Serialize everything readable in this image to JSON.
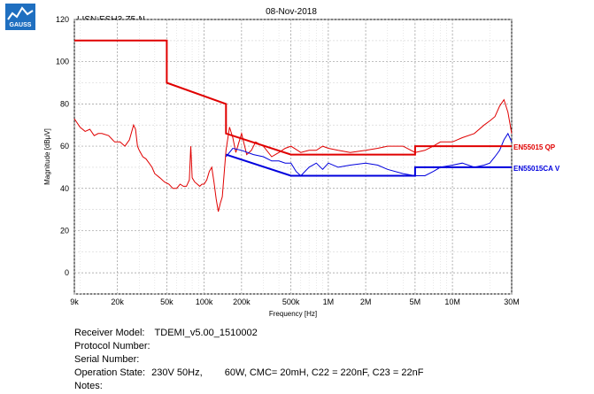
{
  "header": {
    "date": "08-Nov-2018",
    "logo_text": "GAUSS"
  },
  "chart_data": {
    "type": "line",
    "title": "LISN:ESH3-Z5-N",
    "xlabel": "Frequency [Hz]",
    "ylabel": "Magnitude [dBµV]",
    "xscale": "log",
    "xlim": [
      9000,
      30000000
    ],
    "ylim": [
      -10,
      120
    ],
    "grid": true,
    "x_ticks": [
      {
        "value": 9000,
        "label": "9k"
      },
      {
        "value": 20000,
        "label": "20k"
      },
      {
        "value": 50000,
        "label": "50k"
      },
      {
        "value": 100000,
        "label": "100k"
      },
      {
        "value": 200000,
        "label": "200k"
      },
      {
        "value": 500000,
        "label": "500k"
      },
      {
        "value": 1000000,
        "label": "1M"
      },
      {
        "value": 2000000,
        "label": "2M"
      },
      {
        "value": 5000000,
        "label": "5M"
      },
      {
        "value": 10000000,
        "label": "10M"
      },
      {
        "value": 30000000,
        "label": "30M"
      }
    ],
    "y_ticks": [
      {
        "value": 0,
        "label": "0"
      },
      {
        "value": 20,
        "label": "20"
      },
      {
        "value": 40,
        "label": "40"
      },
      {
        "value": 60,
        "label": "60"
      },
      {
        "value": 80,
        "label": "80"
      },
      {
        "value": 100,
        "label": "100"
      },
      {
        "value": 120,
        "label": "120"
      }
    ],
    "limit_lines": [
      {
        "name": "EN55015 QP",
        "color": "#e00000",
        "points": [
          [
            9000,
            110
          ],
          [
            50000,
            110
          ],
          [
            50000,
            90
          ],
          [
            150000,
            80
          ],
          [
            150000,
            66
          ],
          [
            500000,
            56
          ],
          [
            5000000,
            56
          ],
          [
            5000000,
            60
          ],
          [
            30000000,
            60
          ]
        ]
      },
      {
        "name": "EN55015CA V",
        "color": "#0000dd",
        "points": [
          [
            150000,
            56
          ],
          [
            500000,
            46
          ],
          [
            5000000,
            46
          ],
          [
            5000000,
            50
          ],
          [
            30000000,
            50
          ]
        ]
      }
    ],
    "series": [
      {
        "color": "#e00000",
        "x": [
          9000,
          10000,
          11000,
          12000,
          13000,
          14000,
          15000,
          17000,
          19000,
          21000,
          23000,
          25000,
          27000,
          28000,
          29000,
          30000,
          32000,
          34000,
          36000,
          38000,
          40000,
          44000,
          48000,
          52000,
          56000,
          60000,
          64000,
          68000,
          72000,
          76000,
          78000,
          80000,
          84000,
          88000,
          92000,
          96000,
          100000,
          105000,
          110000,
          115000,
          120000,
          125000,
          130000,
          135000,
          140000,
          150000,
          160000,
          170000,
          180000,
          200000,
          220000,
          240000,
          260000,
          300000,
          350000,
          400000,
          450000,
          500000,
          600000,
          700000,
          800000,
          900000,
          1000000,
          1200000,
          1500000,
          2000000,
          2500000,
          3000000,
          4000000,
          5000000,
          6000000,
          7000000,
          8000000,
          10000000,
          12000000,
          15000000,
          18000000,
          20000000,
          22000000,
          24000000,
          26000000,
          28000000,
          30000000
        ],
        "y": [
          73,
          69,
          67,
          68,
          65,
          66,
          66,
          65,
          62,
          62,
          60,
          63,
          70,
          68,
          60,
          58,
          55,
          54,
          52,
          50,
          47,
          45,
          43,
          42,
          40,
          40,
          42,
          41,
          41,
          44,
          60,
          45,
          43,
          42,
          41,
          42,
          42,
          44,
          48,
          50,
          43,
          35,
          29,
          33,
          36,
          58,
          69,
          64,
          57,
          66,
          56,
          58,
          62,
          60,
          55,
          57,
          59,
          60,
          57,
          58,
          58,
          60,
          59,
          58,
          57,
          58,
          59,
          60,
          60,
          57,
          58,
          60,
          62,
          62,
          64,
          66,
          70,
          72,
          74,
          79,
          82,
          76,
          66
        ]
      },
      {
        "color": "#0000dd",
        "x": [
          150000,
          170000,
          200000,
          250000,
          300000,
          350000,
          400000,
          450000,
          500000,
          550000,
          600000,
          700000,
          800000,
          900000,
          1000000,
          1200000,
          1500000,
          2000000,
          2500000,
          3000000,
          4000000,
          5000000,
          6000000,
          7000000,
          8000000,
          10000000,
          12000000,
          15000000,
          18000000,
          20000000,
          22000000,
          24000000,
          26000000,
          28000000,
          30000000
        ],
        "y": [
          55,
          59,
          58,
          56,
          55,
          53,
          53,
          52,
          52,
          48,
          46,
          50,
          52,
          49,
          52,
          50,
          51,
          52,
          51,
          49,
          47,
          46,
          46,
          48,
          50,
          51,
          52,
          50,
          51,
          52,
          55,
          58,
          63,
          66,
          62
        ]
      }
    ],
    "series_labels_on_chart": [
      "EN55015 QP",
      "EN55015CA V"
    ]
  },
  "footer": {
    "receiver_label": "Receiver Model:",
    "receiver_value": "TDEMI_v5.00_1510002",
    "protocol_label": "Protocol Number:",
    "protocol_value": "",
    "serial_label": "Serial Number:",
    "serial_value": "",
    "operation_label": "Operation State:",
    "operation_value": "230V 50Hz,",
    "operation_value2": "60W, CMC= 20mH, C22 = 220nF, C23 = 22nF",
    "notes_label": "Notes:",
    "notes_value": ""
  }
}
